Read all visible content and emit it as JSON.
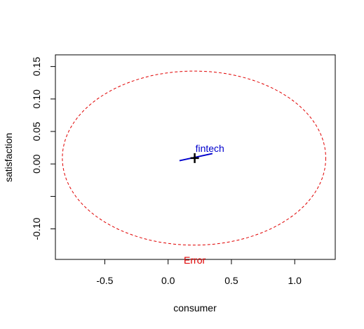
{
  "chart_data": {
    "type": "scatter",
    "title": "",
    "xlabel": "consumer",
    "ylabel": "satisfaction",
    "xlim": [
      -0.89,
      1.32
    ],
    "ylim": [
      -0.147,
      0.168
    ],
    "xticks": [
      -0.5,
      0.0,
      0.5,
      1.0
    ],
    "xtick_labels": [
      "-0.5",
      "0.0",
      "0.5",
      "1.0"
    ],
    "yticks": [
      -0.1,
      -0.05,
      0.0,
      0.05,
      0.1,
      0.15
    ],
    "ytick_labels": [
      "-0.10",
      "",
      "0.00",
      "0.05",
      "0.10",
      "0.15"
    ],
    "grid": false,
    "legend": "none",
    "series": [
      {
        "name": "fintech",
        "label_color": "#0000cd",
        "center": [
          0.21,
          0.009
        ],
        "segment": [
          [
            0.09,
            0.005
          ],
          [
            0.35,
            0.016
          ]
        ]
      }
    ],
    "error_ellipse": {
      "name": "Error",
      "color": "#e00000",
      "center": [
        0.205,
        0.009
      ],
      "radius_x": 1.04,
      "radius_y": 0.134,
      "label_at": [
        0.21,
        -0.148
      ]
    },
    "mean_marker": {
      "position": [
        0.21,
        0.009
      ],
      "color": "#000000",
      "shape": "plus"
    }
  }
}
